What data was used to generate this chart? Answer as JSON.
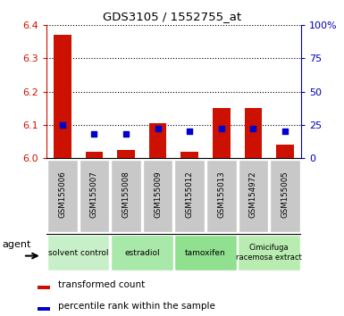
{
  "title": "GDS3105 / 1552755_at",
  "samples": [
    "GSM155006",
    "GSM155007",
    "GSM155008",
    "GSM155009",
    "GSM155012",
    "GSM155013",
    "GSM154972",
    "GSM155005"
  ],
  "red_values": [
    6.37,
    6.02,
    6.025,
    6.105,
    6.02,
    6.15,
    6.15,
    6.04
  ],
  "blue_pct": [
    25,
    18,
    18,
    22,
    20,
    22,
    22,
    20
  ],
  "ylim_left": [
    6.0,
    6.4
  ],
  "ylim_right": [
    0,
    100
  ],
  "left_ticks": [
    6.0,
    6.1,
    6.2,
    6.3,
    6.4
  ],
  "right_ticks": [
    0,
    25,
    50,
    75,
    100
  ],
  "right_tick_labels": [
    "0",
    "25",
    "50",
    "75",
    "100%"
  ],
  "groups": [
    {
      "label": "solvent control",
      "span": [
        0,
        2
      ]
    },
    {
      "label": "estradiol",
      "span": [
        2,
        4
      ]
    },
    {
      "label": "tamoxifen",
      "span": [
        4,
        6
      ]
    },
    {
      "label": "Cimicifuga\nracemosa extract",
      "span": [
        6,
        8
      ]
    }
  ],
  "group_colors": [
    "#c8f0c8",
    "#a8e8a8",
    "#90e090",
    "#b8ecb0"
  ],
  "bar_color": "#cc1100",
  "blue_color": "#0000cc",
  "sample_bg": "#c8c8c8",
  "left_tick_color": "#cc1100",
  "right_tick_color": "#0000bb",
  "bar_width": 0.55,
  "blue_marker_s": 20
}
